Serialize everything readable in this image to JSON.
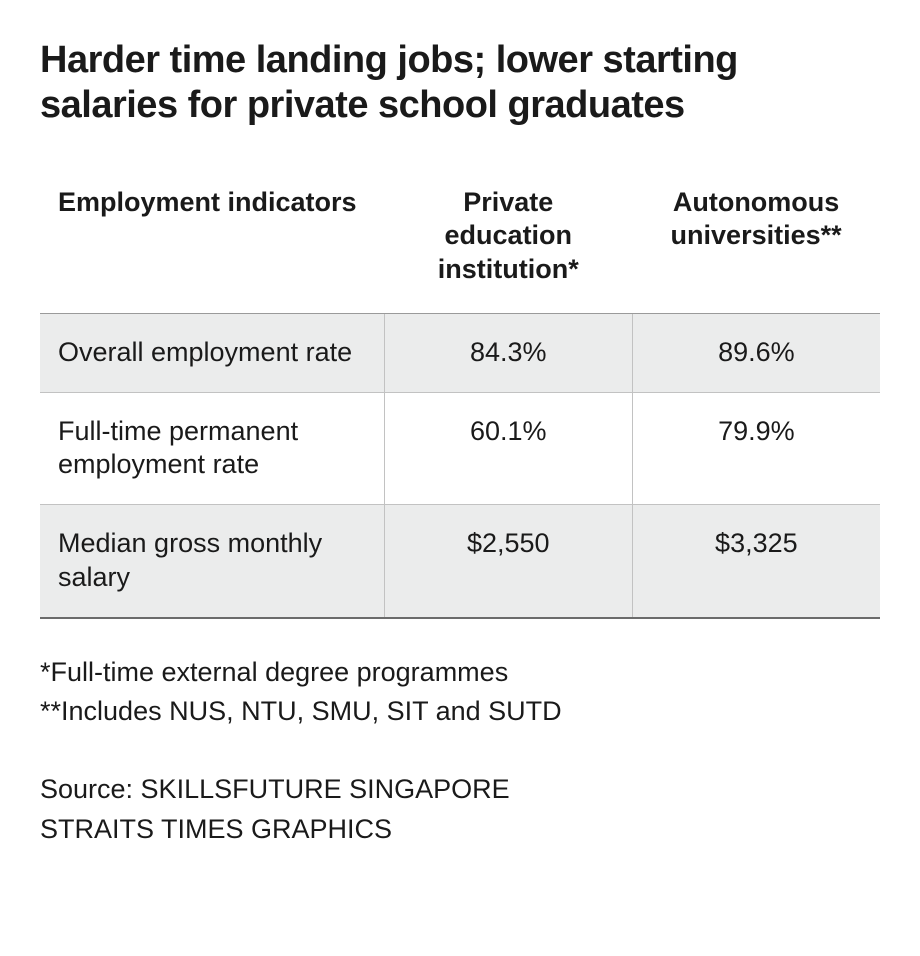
{
  "title": "Harder time landing jobs; lower starting salaries for private school graduates",
  "table": {
    "columns": [
      {
        "label": "Employment indicators",
        "align": "left",
        "width_pct": 41
      },
      {
        "label": "Private education institution*",
        "align": "center",
        "width_pct": 29.5
      },
      {
        "label": "Autonomous universities**",
        "align": "center",
        "width_pct": 29.5
      }
    ],
    "rows": [
      {
        "indicator": "Overall employment rate",
        "private": "84.3%",
        "autonomous": "89.6%",
        "shaded": true
      },
      {
        "indicator": "Full-time permanent employment rate",
        "private": "60.1%",
        "autonomous": "79.9%",
        "shaded": false
      },
      {
        "indicator": "Median gross monthly salary",
        "private": "$2,550",
        "autonomous": "$3,325",
        "shaded": true
      }
    ],
    "header_border_color": "#9a9a9a",
    "row_border_color": "#c2c2c2",
    "bottom_border_color": "#6b6b6b",
    "shade_color": "#ebecec",
    "font_size_pt": 20,
    "header_font_weight": 700
  },
  "footnotes": {
    "line1": "*Full-time external degree programmes",
    "line2": "**Includes NUS, NTU, SMU, SIT and SUTD"
  },
  "source": {
    "line1": "Source: SKILLSFUTURE SINGAPORE",
    "line2": "STRAITS TIMES GRAPHICS"
  },
  "colors": {
    "text": "#1a1a1a",
    "background": "#ffffff"
  }
}
